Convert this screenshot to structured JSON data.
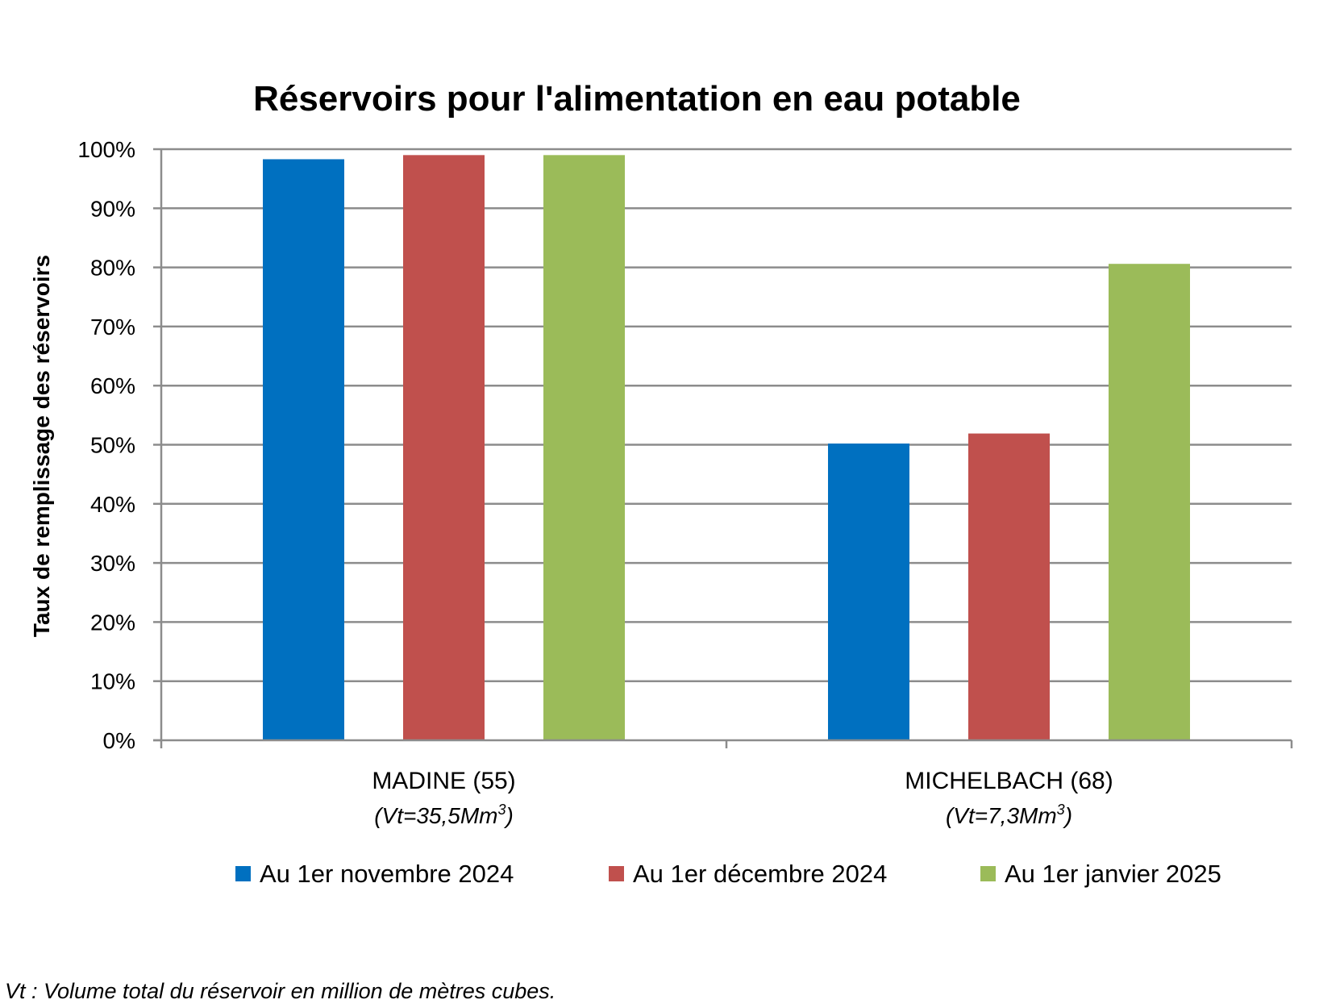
{
  "chart_data": {
    "type": "bar",
    "title": "Réservoirs pour l'alimentation en eau potable",
    "xlabel": "",
    "ylabel": "Taux de remplissage des réservoirs",
    "ylim": [
      0,
      100
    ],
    "yticks": [
      "0%",
      "10%",
      "20%",
      "30%",
      "40%",
      "50%",
      "60%",
      "70%",
      "80%",
      "90%",
      "100%"
    ],
    "grid": true,
    "legend_position": "bottom",
    "categories": [
      {
        "label": "MADINE (55)",
        "sub_main": "(Vt=35,5Mm",
        "sub_sup": "3",
        "sub_end": ")"
      },
      {
        "label": "MICHELBACH (68)",
        "sub_main": "(Vt=7,3Mm",
        "sub_sup": "3",
        "sub_end": ")"
      }
    ],
    "series": [
      {
        "name": "Au 1er novembre 2024",
        "color": "#0070C0",
        "values": [
          98.3,
          50.2
        ]
      },
      {
        "name": "Au 1er décembre 2024",
        "color": "#C0504D",
        "values": [
          99.0,
          51.9
        ]
      },
      {
        "name": "Au 1er janvier 2025",
        "color": "#9BBB59",
        "values": [
          99.0,
          80.6
        ]
      }
    ]
  },
  "footnote": "Vt : Volume total du réservoir en million de mètres cubes."
}
